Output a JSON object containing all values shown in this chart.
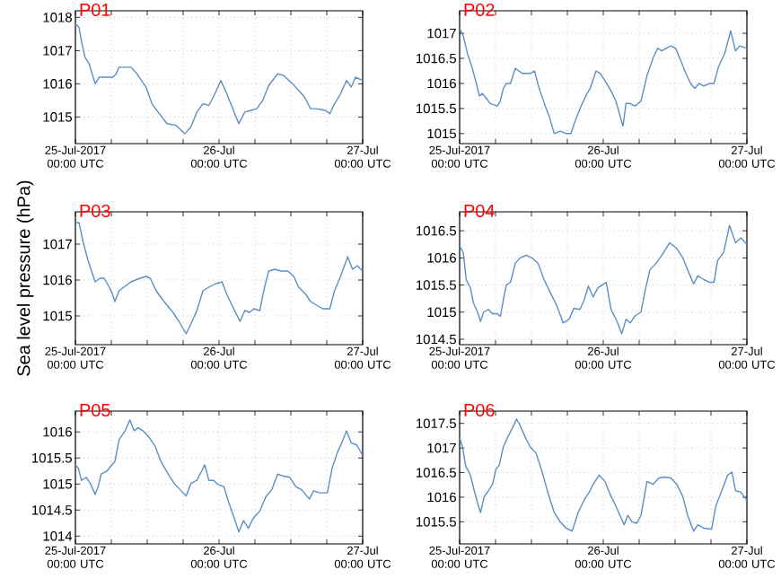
{
  "chart_data": [
    {
      "type": "line",
      "title": "P01",
      "color": "#5b8fc4",
      "grid": true,
      "xlim": [
        "2017-07-25T00:00",
        "2017-07-27T00:00"
      ],
      "ylim": [
        1014.2,
        1018.2
      ],
      "yticks": [
        1015,
        1016,
        1017,
        1018
      ],
      "xticks": [
        {
          "value": "2017-07-25T00:00",
          "label": "25-Jul-2017 00:00 UTC"
        },
        {
          "value": "2017-07-25T06:00",
          "label": null
        },
        {
          "value": "2017-07-25T12:00",
          "label": null
        },
        {
          "value": "2017-07-25T18:00",
          "label": null
        },
        {
          "value": "2017-07-26T00:00",
          "label": "26-Jul 00:00 UTC"
        },
        {
          "value": "2017-07-26T06:00",
          "label": null
        },
        {
          "value": "2017-07-26T12:00",
          "label": null
        },
        {
          "value": "2017-07-26T18:00",
          "label": null
        },
        {
          "value": "2017-07-27T00:00",
          "label": "27-Jul 00:00 UTC"
        }
      ],
      "x": [
        "2017-07-25T00:00",
        "2017-07-25T00:36",
        "2017-07-25T01:00",
        "2017-07-25T01:36",
        "2017-07-25T02:18",
        "2017-07-25T03:18",
        "2017-07-25T04:00",
        "2017-07-25T05:06",
        "2017-07-25T05:48",
        "2017-07-25T06:18",
        "2017-07-25T06:48",
        "2017-07-25T07:18",
        "2017-07-25T08:18",
        "2017-07-25T09:18",
        "2017-07-25T10:18",
        "2017-07-25T11:48",
        "2017-07-25T12:48",
        "2017-07-25T13:48",
        "2017-07-25T15:18",
        "2017-07-25T16:48",
        "2017-07-25T18:18",
        "2017-07-25T19:18",
        "2017-07-25T20:18",
        "2017-07-25T21:18",
        "2017-07-25T22:18",
        "2017-07-25T23:18",
        "2017-07-26T00:18",
        "2017-07-26T01:18",
        "2017-07-26T02:18",
        "2017-07-26T03:18",
        "2017-07-26T04:18",
        "2017-07-26T05:18",
        "2017-07-26T06:18",
        "2017-07-26T07:18",
        "2017-07-26T08:18",
        "2017-07-26T09:48",
        "2017-07-26T10:48",
        "2017-07-26T12:18",
        "2017-07-26T13:18",
        "2017-07-26T14:18",
        "2017-07-26T15:18",
        "2017-07-26T16:18",
        "2017-07-26T17:48",
        "2017-07-26T18:30",
        "2017-07-26T19:18",
        "2017-07-26T20:18",
        "2017-07-26T21:18",
        "2017-07-26T22:06",
        "2017-07-26T22:48",
        "2017-07-27T00:00"
      ],
      "values": [
        1017.8,
        1017.7,
        1017.3,
        1016.8,
        1016.6,
        1016.0,
        1016.2,
        1016.2,
        1016.2,
        1016.2,
        1016.3,
        1016.5,
        1016.5,
        1016.5,
        1016.3,
        1015.9,
        1015.4,
        1015.15,
        1014.8,
        1014.75,
        1014.5,
        1014.7,
        1015.15,
        1015.4,
        1015.35,
        1015.7,
        1016.1,
        1015.7,
        1015.25,
        1014.8,
        1015.15,
        1015.2,
        1015.25,
        1015.5,
        1015.95,
        1016.3,
        1016.25,
        1016.0,
        1015.8,
        1015.6,
        1015.25,
        1015.25,
        1015.2,
        1015.1,
        1015.4,
        1015.7,
        1016.1,
        1015.9,
        1016.2,
        1016.1
      ]
    },
    {
      "type": "line",
      "title": "P02",
      "color": "#5b8fc4",
      "grid": true,
      "xlim": [
        "2017-07-25T00:00",
        "2017-07-27T00:00"
      ],
      "ylim": [
        1014.8,
        1017.45
      ],
      "yticks": [
        1015,
        1015.5,
        1016,
        1016.5,
        1017
      ],
      "xticks": [
        {
          "value": "2017-07-25T00:00",
          "label": "25-Jul-2017 00:00 UTC"
        },
        {
          "value": "2017-07-25T06:00",
          "label": null
        },
        {
          "value": "2017-07-25T12:00",
          "label": null
        },
        {
          "value": "2017-07-25T18:00",
          "label": null
        },
        {
          "value": "2017-07-26T00:00",
          "label": "26-Jul 00:00 UTC"
        },
        {
          "value": "2017-07-26T06:00",
          "label": null
        },
        {
          "value": "2017-07-26T12:00",
          "label": null
        },
        {
          "value": "2017-07-26T18:00",
          "label": null
        },
        {
          "value": "2017-07-27T00:00",
          "label": "27-Jul 00:00 UTC"
        }
      ],
      "x": [
        "2017-07-25T00:00",
        "2017-07-25T00:36",
        "2017-07-25T01:18",
        "2017-07-25T02:00",
        "2017-07-25T02:48",
        "2017-07-25T03:18",
        "2017-07-25T03:48",
        "2017-07-25T04:30",
        "2017-07-25T05:06",
        "2017-07-25T06:18",
        "2017-07-25T06:48",
        "2017-07-25T07:18",
        "2017-07-25T07:48",
        "2017-07-25T08:30",
        "2017-07-25T09:18",
        "2017-07-25T10:30",
        "2017-07-25T11:48",
        "2017-07-25T12:30",
        "2017-07-25T13:18",
        "2017-07-25T14:18",
        "2017-07-25T15:06",
        "2017-07-25T15:48",
        "2017-07-25T16:48",
        "2017-07-25T17:48",
        "2017-07-25T18:36",
        "2017-07-25T19:18",
        "2017-07-25T20:18",
        "2017-07-25T21:18",
        "2017-07-25T21:48",
        "2017-07-25T22:48",
        "2017-07-25T23:30",
        "2017-07-26T00:18",
        "2017-07-26T01:18",
        "2017-07-26T02:06",
        "2017-07-26T02:48",
        "2017-07-26T03:18",
        "2017-07-26T03:48",
        "2017-07-26T04:30",
        "2017-07-26T05:18",
        "2017-07-26T06:18",
        "2017-07-26T07:18",
        "2017-07-26T08:18",
        "2017-07-26T09:06",
        "2017-07-26T09:48",
        "2017-07-26T10:30",
        "2017-07-26T11:18",
        "2017-07-26T12:06",
        "2017-07-26T12:48",
        "2017-07-26T13:48",
        "2017-07-26T14:36",
        "2017-07-26T15:18",
        "2017-07-26T16:00",
        "2017-07-26T16:48",
        "2017-07-26T17:48",
        "2017-07-26T18:30",
        "2017-07-26T19:18",
        "2017-07-26T20:18",
        "2017-07-26T21:18",
        "2017-07-26T22:06",
        "2017-07-26T22:48",
        "2017-07-27T00:00"
      ],
      "values": [
        1017.1,
        1016.95,
        1016.6,
        1016.35,
        1016.0,
        1015.75,
        1015.8,
        1015.7,
        1015.6,
        1015.55,
        1015.65,
        1015.9,
        1016.0,
        1016.0,
        1016.3,
        1016.2,
        1016.2,
        1016.25,
        1015.9,
        1015.55,
        1015.3,
        1015.0,
        1015.05,
        1015.0,
        1015.0,
        1015.25,
        1015.55,
        1015.8,
        1015.9,
        1016.25,
        1016.2,
        1016.05,
        1015.85,
        1015.65,
        1015.35,
        1015.15,
        1015.6,
        1015.6,
        1015.55,
        1015.65,
        1016.15,
        1016.5,
        1016.7,
        1016.65,
        1016.7,
        1016.75,
        1016.7,
        1016.5,
        1016.2,
        1016.0,
        1015.9,
        1016.0,
        1015.95,
        1016.0,
        1016.0,
        1016.35,
        1016.6,
        1017.05,
        1016.65,
        1016.75,
        1016.7
      ]
    },
    {
      "type": "line",
      "title": "P03",
      "ylabel": "Sea level pressure (hPa)",
      "color": "#5b8fc4",
      "grid": true,
      "xlim": [
        "2017-07-25T00:00",
        "2017-07-27T00:00"
      ],
      "ylim": [
        1014.2,
        1017.9
      ],
      "yticks": [
        1015,
        1016,
        1017
      ],
      "xticks": [
        {
          "value": "2017-07-25T00:00",
          "label": "25-Jul-2017 00:00 UTC"
        },
        {
          "value": "2017-07-25T06:00",
          "label": null
        },
        {
          "value": "2017-07-25T12:00",
          "label": null
        },
        {
          "value": "2017-07-25T18:00",
          "label": null
        },
        {
          "value": "2017-07-26T00:00",
          "label": "26-Jul 00:00 UTC"
        },
        {
          "value": "2017-07-26T06:00",
          "label": null
        },
        {
          "value": "2017-07-26T12:00",
          "label": null
        },
        {
          "value": "2017-07-26T18:00",
          "label": null
        },
        {
          "value": "2017-07-27T00:00",
          "label": "27-Jul 00:00 UTC"
        }
      ],
      "x": [
        "2017-07-25T00:00",
        "2017-07-25T00:36",
        "2017-07-25T01:18",
        "2017-07-25T02:06",
        "2017-07-25T02:48",
        "2017-07-25T03:18",
        "2017-07-25T04:06",
        "2017-07-25T04:48",
        "2017-07-25T05:30",
        "2017-07-25T06:06",
        "2017-07-25T06:36",
        "2017-07-25T07:18",
        "2017-07-25T08:06",
        "2017-07-25T09:18",
        "2017-07-25T10:48",
        "2017-07-25T11:48",
        "2017-07-25T12:30",
        "2017-07-25T13:30",
        "2017-07-25T14:48",
        "2017-07-25T16:18",
        "2017-07-25T17:18",
        "2017-07-25T18:30",
        "2017-07-25T19:30",
        "2017-07-25T20:18",
        "2017-07-25T21:18",
        "2017-07-25T22:18",
        "2017-07-25T23:30",
        "2017-07-26T00:30",
        "2017-07-26T01:18",
        "2017-07-26T02:18",
        "2017-07-26T03:30",
        "2017-07-26T04:18",
        "2017-07-26T05:06",
        "2017-07-26T05:48",
        "2017-07-26T06:48",
        "2017-07-26T07:36",
        "2017-07-26T08:18",
        "2017-07-26T09:18",
        "2017-07-26T10:18",
        "2017-07-26T11:30",
        "2017-07-26T12:30",
        "2017-07-26T13:18",
        "2017-07-26T14:30",
        "2017-07-26T15:18",
        "2017-07-26T16:18",
        "2017-07-26T17:18",
        "2017-07-26T18:30",
        "2017-07-26T19:18",
        "2017-07-26T20:18",
        "2017-07-26T21:30",
        "2017-07-26T22:18",
        "2017-07-26T23:06",
        "2017-07-27T00:00"
      ],
      "values": [
        1017.6,
        1017.6,
        1017.05,
        1016.55,
        1016.2,
        1015.95,
        1016.05,
        1016.05,
        1015.85,
        1015.65,
        1015.4,
        1015.7,
        1015.8,
        1015.95,
        1016.05,
        1016.1,
        1016.05,
        1015.7,
        1015.4,
        1015.1,
        1014.85,
        1014.5,
        1014.85,
        1015.15,
        1015.7,
        1015.8,
        1015.9,
        1015.95,
        1015.6,
        1015.25,
        1014.85,
        1015.15,
        1015.1,
        1015.2,
        1015.15,
        1015.8,
        1016.25,
        1016.3,
        1016.25,
        1016.25,
        1016.1,
        1015.8,
        1015.6,
        1015.4,
        1015.3,
        1015.2,
        1015.2,
        1015.7,
        1016.1,
        1016.65,
        1016.3,
        1016.4,
        1016.25
      ]
    },
    {
      "type": "line",
      "title": "P04",
      "color": "#5b8fc4",
      "grid": true,
      "xlim": [
        "2017-07-25T00:00",
        "2017-07-27T00:00"
      ],
      "ylim": [
        1014.4,
        1016.85
      ],
      "yticks": [
        1014.5,
        1015,
        1015.5,
        1016,
        1016.5
      ],
      "xticks": [
        {
          "value": "2017-07-25T00:00",
          "label": "25-Jul-2017 00:00 UTC"
        },
        {
          "value": "2017-07-25T06:00",
          "label": null
        },
        {
          "value": "2017-07-25T12:00",
          "label": null
        },
        {
          "value": "2017-07-25T18:00",
          "label": null
        },
        {
          "value": "2017-07-26T00:00",
          "label": "26-Jul 00:00 UTC"
        },
        {
          "value": "2017-07-26T06:00",
          "label": null
        },
        {
          "value": "2017-07-26T12:00",
          "label": null
        },
        {
          "value": "2017-07-26T18:00",
          "label": null
        },
        {
          "value": "2017-07-27T00:00",
          "label": "27-Jul 00:00 UTC"
        }
      ],
      "x": [
        "2017-07-25T00:00",
        "2017-07-25T00:36",
        "2017-07-25T01:06",
        "2017-07-25T01:48",
        "2017-07-25T02:18",
        "2017-07-25T03:00",
        "2017-07-25T03:30",
        "2017-07-25T04:00",
        "2017-07-25T04:48",
        "2017-07-25T05:30",
        "2017-07-25T06:18",
        "2017-07-25T06:48",
        "2017-07-25T07:18",
        "2017-07-25T07:48",
        "2017-07-25T08:30",
        "2017-07-25T09:18",
        "2017-07-25T10:06",
        "2017-07-25T11:06",
        "2017-07-25T12:06",
        "2017-07-25T13:06",
        "2017-07-25T14:06",
        "2017-07-25T15:18",
        "2017-07-25T16:18",
        "2017-07-25T17:18",
        "2017-07-25T18:18",
        "2017-07-25T19:06",
        "2017-07-25T20:06",
        "2017-07-25T20:48",
        "2017-07-25T21:30",
        "2017-07-25T22:18",
        "2017-07-25T23:06",
        "2017-07-25T23:48",
        "2017-07-26T00:30",
        "2017-07-26T01:18",
        "2017-07-26T02:18",
        "2017-07-26T03:06",
        "2017-07-26T03:48",
        "2017-07-26T04:30",
        "2017-07-26T05:18",
        "2017-07-26T06:18",
        "2017-07-26T07:00",
        "2017-07-26T07:48",
        "2017-07-26T08:48",
        "2017-07-26T09:48",
        "2017-07-26T11:06",
        "2017-07-26T12:18",
        "2017-07-26T13:18",
        "2017-07-26T14:06",
        "2017-07-26T15:06",
        "2017-07-26T15:48",
        "2017-07-26T16:48",
        "2017-07-26T17:48",
        "2017-07-26T18:30",
        "2017-07-26T19:06",
        "2017-07-26T20:06",
        "2017-07-26T21:06",
        "2017-07-26T22:06",
        "2017-07-26T23:00",
        "2017-07-27T00:00"
      ],
      "values": [
        1016.22,
        1016.1,
        1015.6,
        1015.45,
        1015.17,
        1015.0,
        1014.83,
        1015.0,
        1015.05,
        1014.97,
        1014.97,
        1014.92,
        1015.22,
        1015.5,
        1015.55,
        1015.9,
        1016.0,
        1016.05,
        1016.0,
        1015.9,
        1015.6,
        1015.33,
        1015.1,
        1014.8,
        1014.87,
        1015.07,
        1015.05,
        1015.22,
        1015.48,
        1015.28,
        1015.45,
        1015.5,
        1015.55,
        1015.05,
        1014.83,
        1014.6,
        1014.87,
        1014.8,
        1014.93,
        1015.0,
        1015.4,
        1015.78,
        1015.9,
        1016.05,
        1016.28,
        1016.17,
        1016.0,
        1015.78,
        1015.52,
        1015.67,
        1015.6,
        1015.55,
        1015.55,
        1015.95,
        1016.1,
        1016.6,
        1016.28,
        1016.37,
        1016.25
      ]
    },
    {
      "type": "line",
      "title": "P05",
      "color": "#5b8fc4",
      "grid": true,
      "xlim": [
        "2017-07-25T00:00",
        "2017-07-27T00:00"
      ],
      "ylim": [
        1013.85,
        1016.4
      ],
      "yticks": [
        1014,
        1014.5,
        1015,
        1015.5,
        1016
      ],
      "xticks": [
        {
          "value": "2017-07-25T00:00",
          "label": "25-Jul-2017 00:00 UTC"
        },
        {
          "value": "2017-07-25T06:00",
          "label": null
        },
        {
          "value": "2017-07-25T12:00",
          "label": null
        },
        {
          "value": "2017-07-25T18:00",
          "label": null
        },
        {
          "value": "2017-07-26T00:00",
          "label": "26-Jul 00:00 UTC"
        },
        {
          "value": "2017-07-26T06:00",
          "label": null
        },
        {
          "value": "2017-07-26T12:00",
          "label": null
        },
        {
          "value": "2017-07-26T18:00",
          "label": null
        },
        {
          "value": "2017-07-27T00:00",
          "label": "27-Jul 00:00 UTC"
        }
      ],
      "x": [
        "2017-07-25T00:00",
        "2017-07-25T00:30",
        "2017-07-25T01:00",
        "2017-07-25T01:48",
        "2017-07-25T02:30",
        "2017-07-25T03:18",
        "2017-07-25T03:48",
        "2017-07-25T04:18",
        "2017-07-25T05:18",
        "2017-07-25T06:06",
        "2017-07-25T06:36",
        "2017-07-25T07:18",
        "2017-07-25T08:18",
        "2017-07-25T09:06",
        "2017-07-25T09:48",
        "2017-07-25T10:30",
        "2017-07-25T11:18",
        "2017-07-25T12:18",
        "2017-07-25T13:18",
        "2017-07-25T14:18",
        "2017-07-25T15:30",
        "2017-07-25T16:30",
        "2017-07-25T17:30",
        "2017-07-25T18:30",
        "2017-07-25T19:18",
        "2017-07-25T20:18",
        "2017-07-25T21:06",
        "2017-07-25T21:36",
        "2017-07-25T22:18",
        "2017-07-25T23:06",
        "2017-07-25T23:48",
        "2017-07-26T00:48",
        "2017-07-26T01:36",
        "2017-07-26T02:30",
        "2017-07-26T03:18",
        "2017-07-26T04:06",
        "2017-07-26T04:54",
        "2017-07-26T05:48",
        "2017-07-26T06:48",
        "2017-07-26T07:48",
        "2017-07-26T08:48",
        "2017-07-26T09:48",
        "2017-07-26T10:48",
        "2017-07-26T11:48",
        "2017-07-26T12:48",
        "2017-07-26T13:48",
        "2017-07-26T15:06",
        "2017-07-26T15:48",
        "2017-07-26T16:48",
        "2017-07-26T18:06",
        "2017-07-26T18:54",
        "2017-07-26T19:48",
        "2017-07-26T20:30",
        "2017-07-26T21:18",
        "2017-07-26T22:06",
        "2017-07-26T23:00",
        "2017-07-27T00:00"
      ],
      "values": [
        1015.37,
        1015.3,
        1015.07,
        1015.13,
        1015.01,
        1014.8,
        1014.95,
        1015.19,
        1015.25,
        1015.37,
        1015.43,
        1015.85,
        1016.02,
        1016.23,
        1016.02,
        1016.08,
        1016.02,
        1015.9,
        1015.73,
        1015.43,
        1015.19,
        1015.01,
        1014.89,
        1014.77,
        1015.01,
        1015.07,
        1015.25,
        1015.37,
        1015.07,
        1015.07,
        1014.99,
        1014.95,
        1014.65,
        1014.36,
        1014.08,
        1014.3,
        1014.15,
        1014.36,
        1014.48,
        1014.75,
        1014.89,
        1015.19,
        1015.15,
        1015.13,
        1014.95,
        1014.89,
        1014.71,
        1014.87,
        1014.83,
        1014.83,
        1015.31,
        1015.61,
        1015.79,
        1016.02,
        1015.79,
        1015.75,
        1015.55
      ]
    },
    {
      "type": "line",
      "title": "P06",
      "color": "#5b8fc4",
      "grid": true,
      "xlim": [
        "2017-07-25T00:00",
        "2017-07-27T00:00"
      ],
      "ylim": [
        1015.05,
        1017.75
      ],
      "yticks": [
        1015.5,
        1016,
        1016.5,
        1017,
        1017.5
      ],
      "xticks": [
        {
          "value": "2017-07-25T00:00",
          "label": "25-Jul-2017 00:00 UTC"
        },
        {
          "value": "2017-07-25T06:00",
          "label": null
        },
        {
          "value": "2017-07-25T12:00",
          "label": null
        },
        {
          "value": "2017-07-25T18:00",
          "label": null
        },
        {
          "value": "2017-07-26T00:00",
          "label": "26-Jul 00:00 UTC"
        },
        {
          "value": "2017-07-26T06:00",
          "label": null
        },
        {
          "value": "2017-07-26T12:00",
          "label": null
        },
        {
          "value": "2017-07-26T18:00",
          "label": null
        },
        {
          "value": "2017-07-27T00:00",
          "label": "27-Jul 00:00 UTC"
        }
      ],
      "x": [
        "2017-07-25T00:00",
        "2017-07-25T00:30",
        "2017-07-25T01:00",
        "2017-07-25T01:48",
        "2017-07-25T02:18",
        "2017-07-25T03:00",
        "2017-07-25T03:30",
        "2017-07-25T04:06",
        "2017-07-25T04:48",
        "2017-07-25T05:30",
        "2017-07-25T06:06",
        "2017-07-25T06:36",
        "2017-07-25T07:18",
        "2017-07-25T08:00",
        "2017-07-25T08:48",
        "2017-07-25T09:30",
        "2017-07-25T10:06",
        "2017-07-25T11:00",
        "2017-07-25T11:48",
        "2017-07-25T12:48",
        "2017-07-25T13:48",
        "2017-07-25T14:48",
        "2017-07-25T15:48",
        "2017-07-25T16:48",
        "2017-07-25T17:48",
        "2017-07-25T18:48",
        "2017-07-25T19:48",
        "2017-07-25T20:48",
        "2017-07-25T21:48",
        "2017-07-25T22:18",
        "2017-07-25T23:18",
        "2017-07-26T00:18",
        "2017-07-26T01:06",
        "2017-07-26T02:06",
        "2017-07-26T02:48",
        "2017-07-26T03:30",
        "2017-07-26T04:06",
        "2017-07-26T04:48",
        "2017-07-26T05:36",
        "2017-07-26T06:18",
        "2017-07-26T07:18",
        "2017-07-26T08:18",
        "2017-07-26T09:18",
        "2017-07-26T10:18",
        "2017-07-26T11:18",
        "2017-07-26T12:18",
        "2017-07-26T13:18",
        "2017-07-26T14:06",
        "2017-07-26T15:06",
        "2017-07-26T15:48",
        "2017-07-26T16:48",
        "2017-07-26T18:06",
        "2017-07-26T18:48",
        "2017-07-26T19:48",
        "2017-07-26T20:48",
        "2017-07-26T21:30",
        "2017-07-26T22:06",
        "2017-07-26T23:00",
        "2017-07-27T00:00"
      ],
      "values": [
        1017.21,
        1017.02,
        1016.64,
        1016.45,
        1016.2,
        1015.88,
        1015.69,
        1016.01,
        1016.13,
        1016.26,
        1016.58,
        1016.64,
        1017.02,
        1017.21,
        1017.4,
        1017.59,
        1017.46,
        1017.21,
        1017.02,
        1016.89,
        1016.51,
        1016.07,
        1015.69,
        1015.5,
        1015.37,
        1015.31,
        1015.69,
        1015.94,
        1016.13,
        1016.26,
        1016.45,
        1016.32,
        1016.07,
        1015.82,
        1015.63,
        1015.44,
        1015.63,
        1015.5,
        1015.47,
        1015.63,
        1016.32,
        1016.26,
        1016.39,
        1016.41,
        1016.39,
        1016.26,
        1016.01,
        1015.63,
        1015.31,
        1015.44,
        1015.37,
        1015.35,
        1015.82,
        1016.13,
        1016.45,
        1016.51,
        1016.13,
        1016.1,
        1015.94
      ]
    }
  ]
}
